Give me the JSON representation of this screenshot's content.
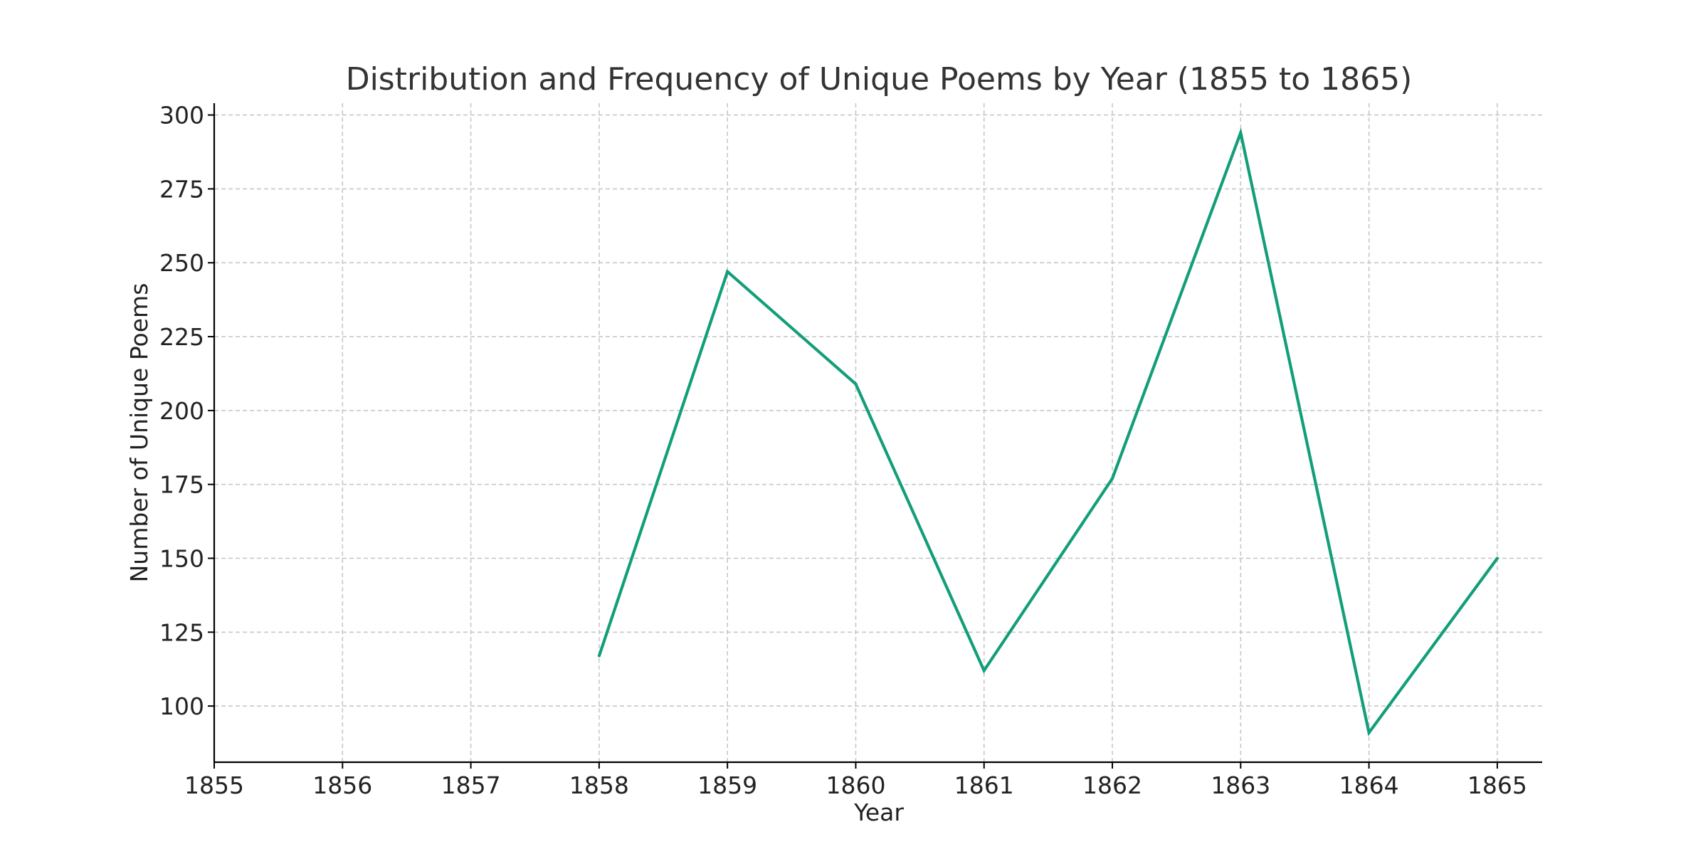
{
  "chart_data": {
    "type": "line",
    "title": "Distribution and Frequency of Unique Poems by Year (1855 to 1865)",
    "xlabel": "Year",
    "ylabel": "Number of Unique Poems",
    "x_ticks": [
      "1855",
      "1856",
      "1857",
      "1858",
      "1859",
      "1860",
      "1861",
      "1862",
      "1863",
      "1864",
      "1865"
    ],
    "y_ticks": [
      "100",
      "125",
      "150",
      "175",
      "200",
      "225",
      "250",
      "275",
      "300"
    ],
    "xlim": [
      1855,
      1865.35
    ],
    "ylim": [
      81,
      304
    ],
    "grid": true,
    "color": "#139e7a",
    "series": [
      {
        "x": [
          1858,
          1859,
          1860,
          1861,
          1862,
          1863,
          1864,
          1865
        ],
        "values": [
          117,
          247,
          209,
          112,
          177,
          294,
          91,
          150
        ]
      }
    ]
  }
}
